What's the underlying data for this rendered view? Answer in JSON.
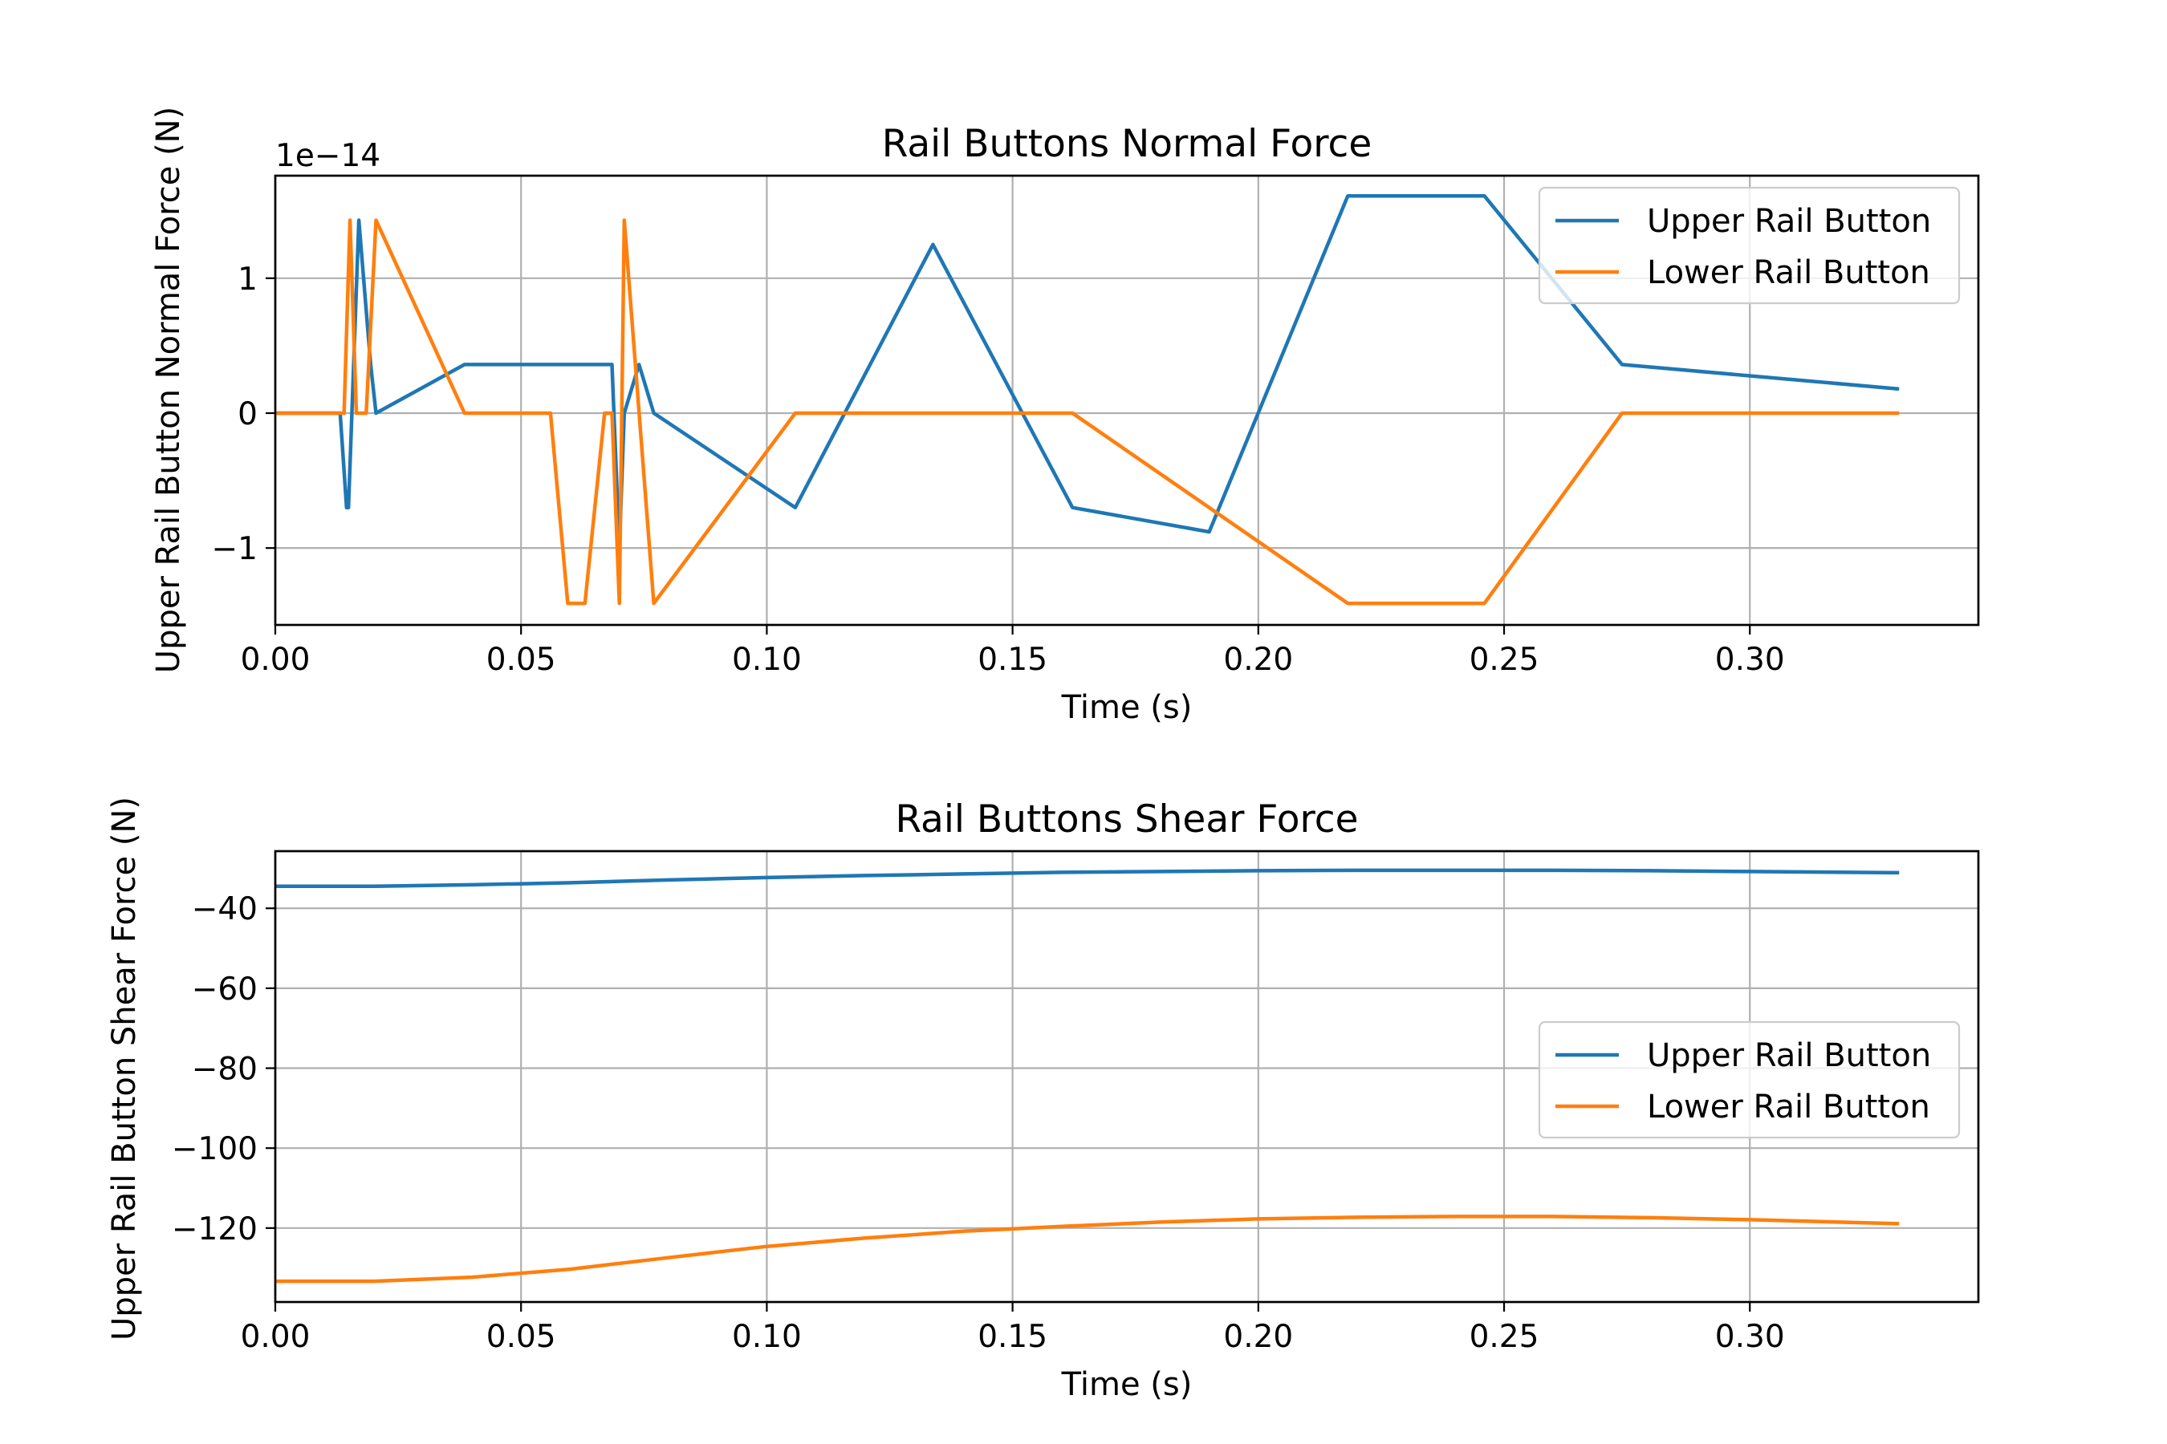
{
  "colors": {
    "upper": "#1f77b4",
    "lower": "#ff7f0e",
    "grid": "#b0b0b0",
    "axes": "#000000",
    "legend_border": "#cccccc"
  },
  "chart_data": [
    {
      "type": "line",
      "title": "Rail Buttons Normal Force",
      "xlabel": "Time (s)",
      "ylabel": "Upper Rail Button Normal Force (N)",
      "offset_text": "1e−14",
      "xlim": [
        0,
        0.3465
      ],
      "ylim": [
        -1.57,
        1.76
      ],
      "xticks": [
        0,
        0.05,
        0.1,
        0.15,
        0.2,
        0.25,
        0.3
      ],
      "xtick_labels": [
        "0.00",
        "0.05",
        "0.10",
        "0.15",
        "0.20",
        "0.25",
        "0.30"
      ],
      "yticks": [
        -1,
        0,
        1
      ],
      "ytick_labels": [
        "−1",
        "0",
        "1"
      ],
      "grid": true,
      "legend": "top-right",
      "series": [
        {
          "name": "Upper Rail Button",
          "color_key": "upper",
          "x": [
            0,
            0.0132,
            0.0145,
            0.0149,
            0.017,
            0.0194,
            0.0205,
            0.0385,
            0.0545,
            0.0685,
            0.07,
            0.071,
            0.074,
            0.077,
            0.1058,
            0.1338,
            0.1622,
            0.19,
            0.2182,
            0.246,
            0.274,
            0.33
          ],
          "y": [
            0,
            0,
            -0.7,
            -0.7,
            1.43,
            0.36,
            0,
            0.36,
            0.36,
            0.36,
            -1.0,
            0,
            0.36,
            0,
            -0.7,
            1.25,
            -0.7,
            -0.88,
            1.61,
            1.61,
            0.36,
            0.18
          ]
        },
        {
          "name": "Lower Rail Button",
          "color_key": "lower",
          "x": [
            0,
            0.014,
            0.0152,
            0.0165,
            0.0185,
            0.0205,
            0.0385,
            0.056,
            0.0595,
            0.063,
            0.067,
            0.0685,
            0.07,
            0.071,
            0.077,
            0.1058,
            0.1622,
            0.2182,
            0.246,
            0.274,
            0.33
          ],
          "y": [
            0,
            0,
            1.43,
            0,
            0,
            1.43,
            0,
            0,
            -1.41,
            -1.41,
            0,
            0,
            -1.41,
            1.43,
            -1.41,
            0,
            0,
            -1.41,
            -1.41,
            0,
            0
          ]
        }
      ]
    },
    {
      "type": "line",
      "title": "Rail Buttons Shear Force",
      "xlabel": "Time (s)",
      "ylabel": "Upper Rail Button Shear Force (N)",
      "xlim": [
        0,
        0.3465
      ],
      "ylim": [
        -138.5,
        -25.7
      ],
      "xticks": [
        0,
        0.05,
        0.1,
        0.15,
        0.2,
        0.25,
        0.3
      ],
      "xtick_labels": [
        "0.00",
        "0.05",
        "0.10",
        "0.15",
        "0.20",
        "0.25",
        "0.30"
      ],
      "yticks": [
        -40,
        -60,
        -80,
        -100,
        -120
      ],
      "ytick_labels": [
        "−40",
        "−60",
        "−80",
        "−100",
        "−120"
      ],
      "grid": true,
      "legend": "center-right",
      "series": [
        {
          "name": "Upper Rail Button",
          "color_key": "upper",
          "x": [
            0,
            0.02,
            0.04,
            0.06,
            0.08,
            0.1,
            0.12,
            0.14,
            0.16,
            0.18,
            0.2,
            0.22,
            0.24,
            0.26,
            0.28,
            0.3,
            0.33
          ],
          "y": [
            -34.5,
            -34.5,
            -34.1,
            -33.6,
            -32.9,
            -32.3,
            -31.8,
            -31.4,
            -31.0,
            -30.8,
            -30.6,
            -30.5,
            -30.5,
            -30.5,
            -30.6,
            -30.8,
            -31.1
          ]
        },
        {
          "name": "Lower Rail Button",
          "color_key": "lower",
          "x": [
            0,
            0.02,
            0.04,
            0.06,
            0.08,
            0.1,
            0.12,
            0.14,
            0.16,
            0.18,
            0.2,
            0.22,
            0.24,
            0.26,
            0.28,
            0.3,
            0.33
          ],
          "y": [
            -133.3,
            -133.3,
            -132.3,
            -130.3,
            -127.4,
            -124.6,
            -122.5,
            -120.8,
            -119.6,
            -118.5,
            -117.7,
            -117.3,
            -117.1,
            -117.1,
            -117.4,
            -117.9,
            -118.9
          ]
        }
      ]
    }
  ]
}
